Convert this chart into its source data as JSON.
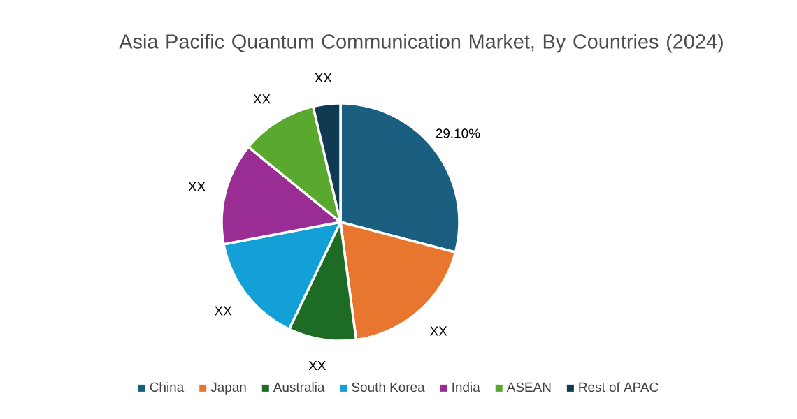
{
  "chart_data": {
    "type": "pie",
    "title": "Asia Pacific Quantum Communication Market, By Countries (2024)",
    "categories": [
      "China",
      "Japan",
      "Australia",
      "South Korea",
      "India",
      "ASEAN",
      "Rest of APAC"
    ],
    "values": [
      29.1,
      18.8,
      9.2,
      14.9,
      13.9,
      10.4,
      3.7
    ],
    "colors": [
      "#1a5f80",
      "#e8762f",
      "#1e6b25",
      "#12a0d6",
      "#9a2d94",
      "#5aa82e",
      "#0f3a52"
    ],
    "value_labels": [
      "29.10%",
      "XX",
      "XX",
      "XX",
      "XX",
      "XX",
      "XX"
    ],
    "legend": "bottom"
  }
}
